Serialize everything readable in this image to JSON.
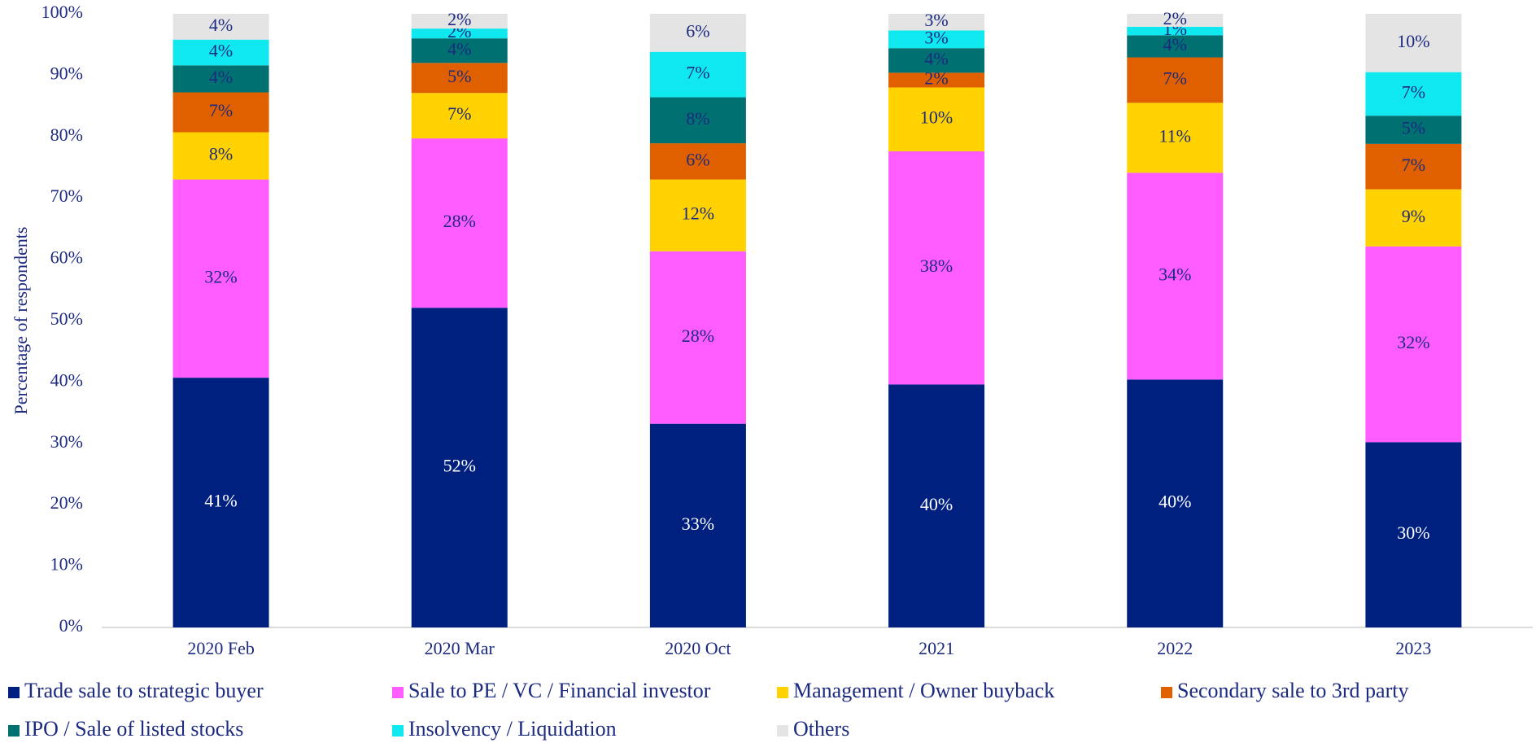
{
  "chart_data": {
    "type": "stacked_bar",
    "y_label": "Percentage of respondents",
    "categories": [
      "2020 Feb",
      "2020 Mar",
      "2020 Oct",
      "2021",
      "2022",
      "2023"
    ],
    "ylim": [
      0,
      100
    ],
    "yticks": [
      {
        "value": 0,
        "label": "0%"
      },
      {
        "value": 10,
        "label": "10%"
      },
      {
        "value": 20,
        "label": "20%"
      },
      {
        "value": 30,
        "label": "30%"
      },
      {
        "value": 40,
        "label": "40%"
      },
      {
        "value": 50,
        "label": "50%"
      },
      {
        "value": 60,
        "label": "60%"
      },
      {
        "value": 70,
        "label": "70%"
      },
      {
        "value": 80,
        "label": "80%"
      },
      {
        "value": 90,
        "label": "90%"
      },
      {
        "value": 100,
        "label": "100%"
      }
    ],
    "series": [
      {
        "name": "Trade sale to strategic buyer",
        "color": "#002080",
        "values": [
          40.7,
          52.1,
          33.2,
          39.6,
          40.4,
          30.2
        ],
        "value_labels": [
          "41%",
          "52%",
          "33%",
          "40%",
          "40%",
          "30%"
        ]
      },
      {
        "name": "Sale to PE / VC / Financial investor",
        "color": "#ff5cff",
        "values": [
          32.3,
          27.6,
          28.1,
          38.0,
          33.7,
          31.9
        ],
        "value_labels": [
          "32%",
          "28%",
          "28%",
          "38%",
          "34%",
          "32%"
        ]
      },
      {
        "name": "Management / Owner buyback",
        "color": "#ffd200",
        "values": [
          7.7,
          7.4,
          11.7,
          10.4,
          11.4,
          9.3
        ],
        "value_labels": [
          "8%",
          "7%",
          "12%",
          "10%",
          "11%",
          "9%"
        ]
      },
      {
        "name": "Secondary sale to 3rd party",
        "color": "#e06000",
        "values": [
          6.5,
          4.9,
          5.9,
          2.4,
          7.4,
          7.4
        ],
        "value_labels": [
          "7%",
          "5%",
          "6%",
          "2%",
          "7%",
          "7%"
        ]
      },
      {
        "name": "IPO / Sale of listed stocks",
        "color": "#007070",
        "values": [
          4.4,
          4.0,
          7.5,
          4.0,
          3.6,
          4.6
        ],
        "value_labels": [
          "4%",
          "4%",
          "8%",
          "4%",
          "4%",
          "5%"
        ]
      },
      {
        "name": "Insolvency / Liquidation",
        "color": "#10e8f0",
        "values": [
          4.2,
          1.6,
          7.4,
          2.9,
          1.4,
          7.1
        ],
        "value_labels": [
          "4%",
          "2%",
          "7%",
          "3%",
          "1%",
          "7%"
        ]
      },
      {
        "name": "Others",
        "color": "#e4e4e4",
        "values": [
          4.2,
          2.4,
          6.2,
          2.7,
          2.1,
          9.5
        ],
        "value_labels": [
          "4%",
          "2%",
          "6%",
          "3%",
          "2%",
          "10%"
        ]
      }
    ]
  }
}
